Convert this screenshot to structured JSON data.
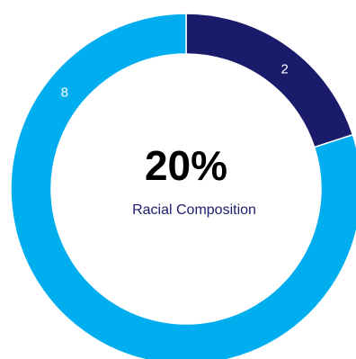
{
  "chart_data": {
    "type": "pie",
    "variant": "donut",
    "slices": [
      {
        "value": 2,
        "label": "2",
        "color": "#1b1b6b"
      },
      {
        "value": 8,
        "label": "8",
        "color": "#00aeef"
      }
    ],
    "center_value": "20%",
    "center_caption": "Racial Composition",
    "legend": "none"
  }
}
